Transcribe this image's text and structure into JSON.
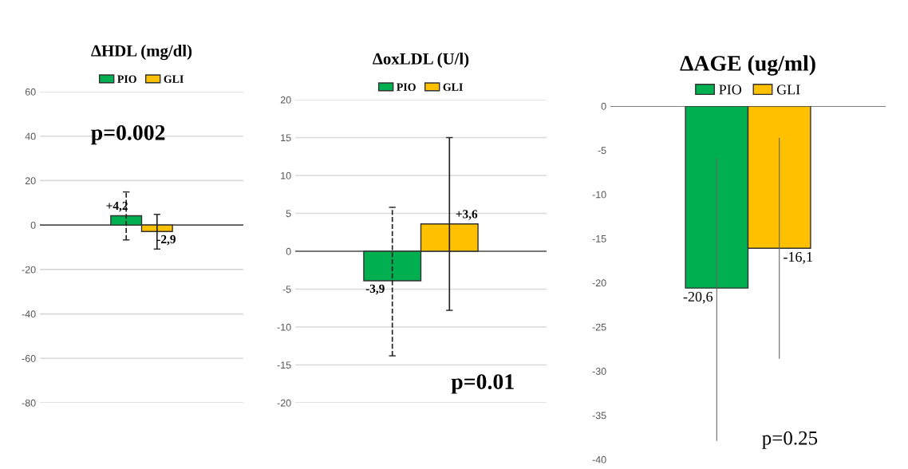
{
  "chart_data": [
    {
      "type": "bar",
      "title": "ΔHDL (mg/dl)",
      "categories": [
        null
      ],
      "legend": "top",
      "grid": "y",
      "tick_labels": "y",
      "ylim": [
        -80,
        60
      ],
      "yticks": [
        -80,
        -60,
        -40,
        -20,
        0,
        20,
        40,
        60
      ],
      "annotations": [
        "p=0.002"
      ],
      "series": [
        {
          "name": "PIO",
          "color": "#00b050",
          "values": [
            4.2
          ],
          "errors": [
            [
              -6.7,
              14.9
            ]
          ],
          "value_labels": [
            "+4,2"
          ],
          "line_style": "dashed"
        },
        {
          "name": "GLI",
          "color": "#ffc000",
          "values": [
            -2.9
          ],
          "errors": [
            [
              -10.8,
              4.8
            ]
          ],
          "value_labels": [
            "-2,9"
          ],
          "line_style": "solid"
        }
      ]
    },
    {
      "type": "bar",
      "title": "ΔoxLDL (U/l)",
      "categories": [
        null
      ],
      "legend": "top",
      "grid": "y",
      "tick_labels": "y",
      "ylim": [
        -20,
        20
      ],
      "yticks": [
        -20,
        -15,
        -10,
        -5,
        0,
        5,
        10,
        15,
        20
      ],
      "annotations": [
        "p=0.01"
      ],
      "series": [
        {
          "name": "PIO",
          "color": "#00b050",
          "values": [
            -3.9
          ],
          "errors": [
            [
              -13.8,
              5.8
            ]
          ],
          "value_labels": [
            "-3,9"
          ],
          "line_style": "dashed"
        },
        {
          "name": "GLI",
          "color": "#ffc000",
          "values": [
            3.6
          ],
          "errors": [
            [
              -7.8,
              15.0
            ]
          ],
          "value_labels": [
            "+3,6"
          ],
          "line_style": "solid"
        }
      ]
    },
    {
      "type": "bar",
      "title": "ΔAGE (ug/ml)",
      "categories": [
        null
      ],
      "legend": "top",
      "tick_labels": "y",
      "ylim": [
        -40,
        0
      ],
      "yticks": [
        -40,
        -35,
        -30,
        -25,
        -20,
        -15,
        -10,
        -5,
        0
      ],
      "annotations": [
        "p=0.25"
      ],
      "series": [
        {
          "name": "PIO",
          "color": "#00b050",
          "values": [
            -20.6
          ],
          "errors": [
            [
              -37.9,
              -5.9
            ]
          ],
          "value_labels": [
            "-20,6"
          ],
          "line_style": "solid"
        },
        {
          "name": "GLI",
          "color": "#ffc000",
          "values": [
            -16.1
          ],
          "errors": [
            [
              -28.6,
              -3.6
            ]
          ],
          "value_labels": [
            "-16,1"
          ],
          "line_style": "solid"
        }
      ]
    }
  ]
}
